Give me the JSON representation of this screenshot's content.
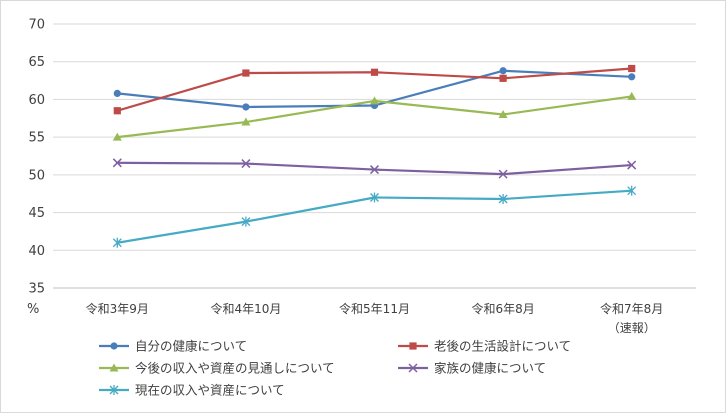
{
  "chart_data": {
    "type": "line",
    "ylabel": "%",
    "ylim": [
      35,
      70
    ],
    "yticks": [
      "70",
      "65",
      "60",
      "55",
      "50",
      "45",
      "40",
      "35"
    ],
    "ytick_values": [
      70,
      65,
      60,
      55,
      50,
      45,
      40,
      35
    ],
    "categories": [
      "令和3年9月",
      "令和4年10月",
      "令和5年11月",
      "令和6年8月",
      "令和7年8月"
    ],
    "category_notes": [
      "",
      "",
      "",
      "",
      "（速報）"
    ],
    "grid": true,
    "legend_position": "bottom",
    "series": [
      {
        "name": "自分の健康について",
        "color": "#4a7ebb",
        "marker": "circle",
        "values": [
          60.8,
          59.0,
          59.2,
          63.8,
          63.0
        ]
      },
      {
        "name": "老後の生活設計について",
        "color": "#be4b48",
        "marker": "square",
        "values": [
          58.5,
          63.5,
          63.6,
          62.8,
          64.1
        ]
      },
      {
        "name": "今後の収入や資産の見通しについて",
        "color": "#98b954",
        "marker": "triangle",
        "values": [
          55.0,
          57.0,
          59.8,
          58.0,
          60.4
        ]
      },
      {
        "name": "家族の健康について",
        "color": "#7d60a0",
        "marker": "x",
        "values": [
          51.6,
          51.5,
          50.7,
          50.1,
          51.3
        ]
      },
      {
        "name": "現在の収入や資産について",
        "color": "#46aac5",
        "marker": "star",
        "values": [
          41.0,
          43.8,
          47.0,
          46.8,
          47.9
        ]
      }
    ]
  }
}
